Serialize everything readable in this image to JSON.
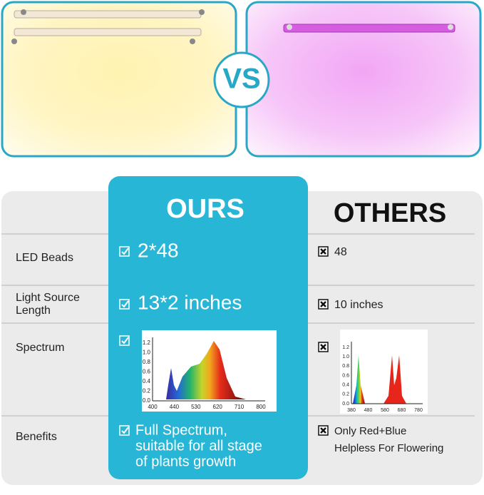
{
  "vs_label": "VS",
  "comparison": {
    "ours_header": "OURS",
    "others_header": "OTHERS",
    "rows": [
      {
        "label": "LED Beads",
        "ours": "2*48",
        "others": "48"
      },
      {
        "label_lines": [
          "Light Source",
          "Length"
        ],
        "ours": "13*2 inches",
        "others": "10 inches"
      },
      {
        "label": "Spectrum",
        "ours_chart": {
          "yticks": [
            "1.2",
            "1.0",
            "0.8",
            "0.6",
            "0.4",
            "0.2",
            "0.0"
          ],
          "xticks": [
            "400",
            "440",
            "530",
            "620",
            "710",
            "800"
          ]
        },
        "others_chart": {
          "yticks": [
            "1.2",
            "1.0",
            "0.8",
            "0.6",
            "0.4",
            "0.2",
            "0.0"
          ],
          "xticks": [
            "380",
            "480",
            "580",
            "680",
            "780"
          ]
        }
      },
      {
        "label": "Benefits",
        "ours_lines": [
          "Full Spectrum,",
          "suitable for all stage",
          "of plants growth"
        ],
        "others_lines": [
          "Only Red+Blue",
          "Helpless For Flowering"
        ]
      }
    ]
  }
}
